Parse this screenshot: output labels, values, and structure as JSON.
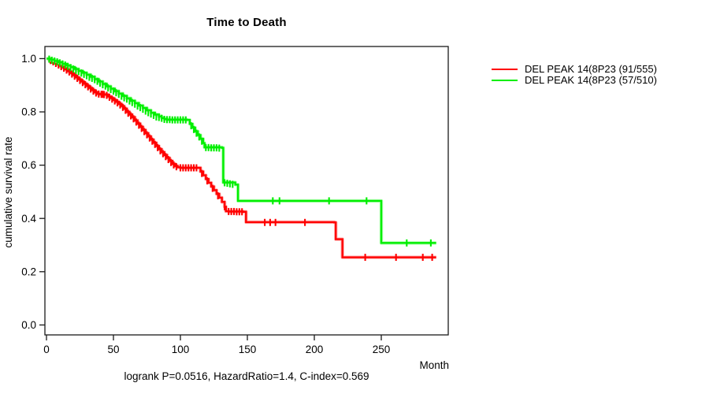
{
  "chart_data": {
    "type": "line",
    "subtype": "kaplan-meier-step",
    "title": "Time to Death",
    "xlabel": "Month",
    "ylabel": "cumulative survival rate",
    "annotation": "logrank P=0.0516, HazardRatio=1.4, C-index=0.569",
    "xticks": [
      0,
      50,
      100,
      150,
      200,
      250
    ],
    "ytick_labels": [
      "0.0",
      "0.2",
      "0.4",
      "0.6",
      "0.8",
      "1.0"
    ],
    "xlim": [
      0,
      300
    ],
    "ylim": [
      0,
      1.0
    ],
    "grid": false,
    "legend_position": "right-outside",
    "axis_color": "#1a1a1a",
    "series": [
      {
        "name": "DEL PEAK 14(8P23 (91/555)",
        "color": "#ff0000",
        "halo": "#ffb0b0",
        "steps": [
          [
            0,
            1.0
          ],
          [
            2,
            0.995
          ],
          [
            4,
            0.99
          ],
          [
            6,
            0.985
          ],
          [
            8,
            0.979
          ],
          [
            10,
            0.973
          ],
          [
            12,
            0.967
          ],
          [
            14,
            0.96
          ],
          [
            16,
            0.953
          ],
          [
            18,
            0.946
          ],
          [
            20,
            0.938
          ],
          [
            22,
            0.93
          ],
          [
            24,
            0.922
          ],
          [
            26,
            0.914
          ],
          [
            28,
            0.906
          ],
          [
            30,
            0.898
          ],
          [
            32,
            0.89
          ],
          [
            34,
            0.882
          ],
          [
            36,
            0.874
          ],
          [
            38,
            0.868
          ],
          [
            40,
            0.866
          ],
          [
            44,
            0.865
          ],
          [
            46,
            0.858
          ],
          [
            48,
            0.852
          ],
          [
            50,
            0.845
          ],
          [
            52,
            0.838
          ],
          [
            54,
            0.83
          ],
          [
            56,
            0.822
          ],
          [
            58,
            0.812
          ],
          [
            60,
            0.8
          ],
          [
            62,
            0.79
          ],
          [
            64,
            0.78
          ],
          [
            66,
            0.768
          ],
          [
            68,
            0.756
          ],
          [
            70,
            0.744
          ],
          [
            72,
            0.732
          ],
          [
            74,
            0.72
          ],
          [
            76,
            0.708
          ],
          [
            78,
            0.696
          ],
          [
            80,
            0.684
          ],
          [
            82,
            0.672
          ],
          [
            84,
            0.66
          ],
          [
            86,
            0.649
          ],
          [
            88,
            0.638
          ],
          [
            90,
            0.627
          ],
          [
            92,
            0.616
          ],
          [
            94,
            0.605
          ],
          [
            96,
            0.597
          ],
          [
            98,
            0.592
          ],
          [
            100,
            0.59
          ],
          [
            113,
            0.59
          ],
          [
            115,
            0.576
          ],
          [
            117,
            0.562
          ],
          [
            119,
            0.548
          ],
          [
            121,
            0.534
          ],
          [
            123,
            0.52
          ],
          [
            125,
            0.506
          ],
          [
            127,
            0.492
          ],
          [
            129,
            0.478
          ],
          [
            131,
            0.462
          ],
          [
            133,
            0.444
          ],
          [
            134,
            0.427
          ],
          [
            136,
            0.426
          ],
          [
            147,
            0.425
          ],
          [
            149,
            0.386
          ],
          [
            215,
            0.385
          ],
          [
            216,
            0.322
          ],
          [
            221,
            0.254
          ],
          [
            291,
            0.254
          ]
        ],
        "censors": [
          [
            3,
            0.993
          ],
          [
            5,
            0.988
          ],
          [
            7,
            0.982
          ],
          [
            9,
            0.976
          ],
          [
            11,
            0.97
          ],
          [
            13,
            0.964
          ],
          [
            15,
            0.957
          ],
          [
            17,
            0.95
          ],
          [
            19,
            0.942
          ],
          [
            21,
            0.934
          ],
          [
            23,
            0.926
          ],
          [
            25,
            0.918
          ],
          [
            27,
            0.91
          ],
          [
            29,
            0.902
          ],
          [
            31,
            0.894
          ],
          [
            33,
            0.886
          ],
          [
            35,
            0.878
          ],
          [
            37,
            0.871
          ],
          [
            39,
            0.867
          ],
          [
            41,
            0.866
          ],
          [
            42,
            0.866
          ],
          [
            43,
            0.865
          ],
          [
            45,
            0.862
          ],
          [
            47,
            0.855
          ],
          [
            49,
            0.848
          ],
          [
            51,
            0.841
          ],
          [
            53,
            0.834
          ],
          [
            55,
            0.826
          ],
          [
            57,
            0.817
          ],
          [
            59,
            0.806
          ],
          [
            61,
            0.795
          ],
          [
            63,
            0.785
          ],
          [
            65,
            0.774
          ],
          [
            67,
            0.762
          ],
          [
            69,
            0.75
          ],
          [
            71,
            0.738
          ],
          [
            73,
            0.726
          ],
          [
            75,
            0.714
          ],
          [
            77,
            0.702
          ],
          [
            79,
            0.69
          ],
          [
            81,
            0.678
          ],
          [
            83,
            0.666
          ],
          [
            85,
            0.654
          ],
          [
            87,
            0.643
          ],
          [
            89,
            0.632
          ],
          [
            91,
            0.621
          ],
          [
            93,
            0.61
          ],
          [
            95,
            0.601
          ],
          [
            97,
            0.594
          ],
          [
            100,
            0.59
          ],
          [
            102,
            0.59
          ],
          [
            104,
            0.59
          ],
          [
            106,
            0.59
          ],
          [
            108,
            0.59
          ],
          [
            110,
            0.59
          ],
          [
            112,
            0.59
          ],
          [
            116,
            0.569
          ],
          [
            120,
            0.541
          ],
          [
            124,
            0.513
          ],
          [
            128,
            0.485
          ],
          [
            133,
            0.444
          ],
          [
            136,
            0.426
          ],
          [
            138,
            0.426
          ],
          [
            140,
            0.426
          ],
          [
            142,
            0.425
          ],
          [
            144,
            0.425
          ],
          [
            146,
            0.425
          ],
          [
            163,
            0.385
          ],
          [
            167,
            0.385
          ],
          [
            171,
            0.385
          ],
          [
            193,
            0.385
          ],
          [
            238,
            0.254
          ],
          [
            261,
            0.254
          ],
          [
            281,
            0.254
          ],
          [
            288,
            0.254
          ]
        ]
      },
      {
        "name": "DEL PEAK 14(8P23 (57/510)",
        "color": "#00ee00",
        "halo": "#b0ffb0",
        "steps": [
          [
            0,
            1.0
          ],
          [
            3,
            0.996
          ],
          [
            6,
            0.991
          ],
          [
            9,
            0.986
          ],
          [
            12,
            0.98
          ],
          [
            15,
            0.974
          ],
          [
            18,
            0.968
          ],
          [
            21,
            0.961
          ],
          [
            24,
            0.954
          ],
          [
            27,
            0.947
          ],
          [
            30,
            0.94
          ],
          [
            33,
            0.932
          ],
          [
            36,
            0.923
          ],
          [
            39,
            0.914
          ],
          [
            42,
            0.905
          ],
          [
            45,
            0.896
          ],
          [
            48,
            0.887
          ],
          [
            51,
            0.878
          ],
          [
            54,
            0.869
          ],
          [
            57,
            0.86
          ],
          [
            60,
            0.851
          ],
          [
            63,
            0.842
          ],
          [
            66,
            0.833
          ],
          [
            69,
            0.824
          ],
          [
            72,
            0.815
          ],
          [
            75,
            0.806
          ],
          [
            78,
            0.797
          ],
          [
            81,
            0.79
          ],
          [
            84,
            0.783
          ],
          [
            86,
            0.777
          ],
          [
            88,
            0.773
          ],
          [
            90,
            0.771
          ],
          [
            105,
            0.77
          ],
          [
            107,
            0.755
          ],
          [
            109,
            0.741
          ],
          [
            111,
            0.727
          ],
          [
            113,
            0.713
          ],
          [
            115,
            0.699
          ],
          [
            117,
            0.683
          ],
          [
            118,
            0.667
          ],
          [
            131,
            0.665
          ],
          [
            132,
            0.535
          ],
          [
            141,
            0.527
          ],
          [
            143,
            0.466
          ],
          [
            249,
            0.466
          ],
          [
            250,
            0.308
          ],
          [
            291,
            0.308
          ]
        ],
        "censors": [
          [
            2,
            0.998
          ],
          [
            4,
            0.994
          ],
          [
            6,
            0.991
          ],
          [
            8,
            0.988
          ],
          [
            10,
            0.984
          ],
          [
            12,
            0.98
          ],
          [
            14,
            0.976
          ],
          [
            16,
            0.971
          ],
          [
            18,
            0.966
          ],
          [
            20,
            0.961
          ],
          [
            22,
            0.956
          ],
          [
            24,
            0.951
          ],
          [
            26,
            0.946
          ],
          [
            28,
            0.941
          ],
          [
            30,
            0.936
          ],
          [
            32,
            0.93
          ],
          [
            34,
            0.926
          ],
          [
            36,
            0.921
          ],
          [
            38,
            0.915
          ],
          [
            40,
            0.908
          ],
          [
            42,
            0.902
          ],
          [
            44,
            0.897
          ],
          [
            46,
            0.89
          ],
          [
            48,
            0.884
          ],
          [
            50,
            0.878
          ],
          [
            52,
            0.872
          ],
          [
            54,
            0.866
          ],
          [
            56,
            0.859
          ],
          [
            58,
            0.853
          ],
          [
            60,
            0.848
          ],
          [
            62,
            0.841
          ],
          [
            64,
            0.835
          ],
          [
            66,
            0.829
          ],
          [
            68,
            0.822
          ],
          [
            70,
            0.816
          ],
          [
            72,
            0.81
          ],
          [
            74,
            0.803
          ],
          [
            76,
            0.797
          ],
          [
            78,
            0.792
          ],
          [
            80,
            0.787
          ],
          [
            82,
            0.781
          ],
          [
            84,
            0.779
          ],
          [
            86,
            0.776
          ],
          [
            88,
            0.772
          ],
          [
            90,
            0.771
          ],
          [
            92,
            0.771
          ],
          [
            94,
            0.77
          ],
          [
            96,
            0.77
          ],
          [
            98,
            0.77
          ],
          [
            100,
            0.77
          ],
          [
            102,
            0.77
          ],
          [
            104,
            0.77
          ],
          [
            108,
            0.748
          ],
          [
            110,
            0.734
          ],
          [
            112,
            0.72
          ],
          [
            114,
            0.706
          ],
          [
            116,
            0.69
          ],
          [
            119,
            0.666
          ],
          [
            121,
            0.666
          ],
          [
            123,
            0.665
          ],
          [
            125,
            0.665
          ],
          [
            127,
            0.665
          ],
          [
            129,
            0.664
          ],
          [
            133,
            0.534
          ],
          [
            135,
            0.532
          ],
          [
            137,
            0.53
          ],
          [
            139,
            0.528
          ],
          [
            169,
            0.466
          ],
          [
            174,
            0.466
          ],
          [
            211,
            0.466
          ],
          [
            239,
            0.466
          ],
          [
            269,
            0.308
          ],
          [
            287,
            0.308
          ]
        ]
      }
    ]
  }
}
